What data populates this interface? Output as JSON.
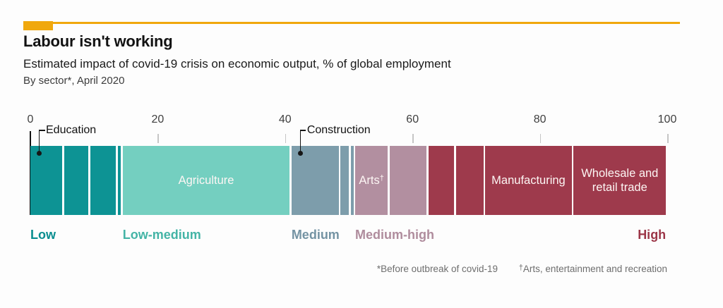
{
  "header": {
    "title": "Labour isn't working",
    "subtitle": "Estimated impact of covid-19 crisis on economic output, % of global employment",
    "byline": "By sector*, April 2020",
    "accent_color": "#F0A80D"
  },
  "chart_data": {
    "type": "bar",
    "stacked": true,
    "orientation": "horizontal",
    "title": "Labour isn't working",
    "subtitle": "Estimated impact of covid-19 crisis on economic output, % of global employment",
    "note": "By sector*, April 2020",
    "unit": "% of global employment",
    "axis": {
      "min": 0,
      "max": 100,
      "ticks": [
        0,
        20,
        40,
        60,
        80,
        100
      ],
      "grid": false
    },
    "groups": [
      {
        "id": "low",
        "label": "Low",
        "color": "#0d9394",
        "label_color": "#0a8e90",
        "align": "left"
      },
      {
        "id": "low-medium",
        "label": "Low-medium",
        "color": "#74cfc0",
        "label_color": "#44b4a6",
        "align": "left"
      },
      {
        "id": "medium",
        "label": "Medium",
        "color": "#7d9dab",
        "label_color": "#7493a3",
        "align": "left"
      },
      {
        "id": "medium-high",
        "label": "Medium-high",
        "color": "#b28fa0",
        "label_color": "#af8c9d",
        "align": "left"
      },
      {
        "id": "high",
        "label": "High",
        "color": "#9e3a4c",
        "label_color": "#9c3648",
        "align": "right"
      }
    ],
    "segments": [
      {
        "group": "low",
        "value": 5.3,
        "callout": "Education"
      },
      {
        "group": "low",
        "value": 4.1
      },
      {
        "group": "low",
        "value": 4.3
      },
      {
        "group": "low",
        "value": 0.8
      },
      {
        "group": "low-medium",
        "value": 26.5,
        "label": "Agriculture"
      },
      {
        "group": "medium",
        "value": 7.7,
        "callout": "Construction"
      },
      {
        "group": "medium",
        "value": 1.6
      },
      {
        "group": "medium",
        "value": 0.7
      },
      {
        "group": "medium-high",
        "value": 5.4,
        "label": "Arts",
        "label_sup": "†"
      },
      {
        "group": "medium-high",
        "value": 6.1
      },
      {
        "group": "high",
        "value": 4.3
      },
      {
        "group": "high",
        "value": 4.6
      },
      {
        "group": "high",
        "value": 13.9,
        "label": "Manufacturing"
      },
      {
        "group": "high",
        "value": 14.5,
        "label": "Wholesale and retail trade"
      }
    ]
  },
  "footnotes": [
    {
      "marker": "*",
      "text": "Before outbreak of covid-19"
    },
    {
      "marker": "†",
      "text": "Arts, entertainment and recreation"
    }
  ]
}
